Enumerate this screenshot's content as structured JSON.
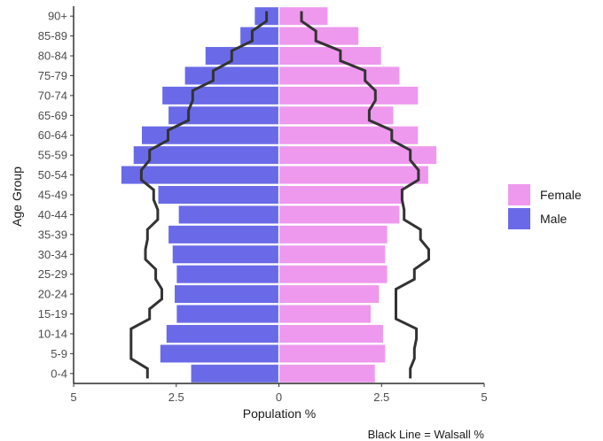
{
  "chart_data": {
    "type": "bar",
    "orientation": "horizontal",
    "xlabel": "Population %",
    "ylabel": "Age Group",
    "caption": "Black Line = Walsall %",
    "xlim": [
      -5,
      5
    ],
    "x_ticks": [
      -5,
      -2.5,
      0,
      2.5,
      5
    ],
    "x_tick_labels": [
      "5",
      "2.5",
      "0",
      "2.5",
      "5"
    ],
    "grid": false,
    "legend_position": "right",
    "categories": [
      "0-4",
      "5-9",
      "10-14",
      "15-19",
      "20-24",
      "25-29",
      "30-34",
      "35-39",
      "40-44",
      "45-49",
      "50-54",
      "55-59",
      "60-64",
      "65-69",
      "70-74",
      "75-79",
      "80-84",
      "85-89",
      "90+"
    ],
    "series": [
      {
        "name": "Female",
        "color": "#ee99ee",
        "values": [
          2.35,
          2.6,
          2.55,
          2.25,
          2.45,
          2.65,
          2.6,
          2.65,
          2.95,
          3.05,
          3.65,
          3.85,
          3.4,
          2.8,
          3.4,
          2.95,
          2.5,
          1.95,
          1.2
        ]
      },
      {
        "name": "Male",
        "color": "#6a6ae8",
        "values": [
          -2.15,
          -2.9,
          -2.75,
          -2.5,
          -2.55,
          -2.5,
          -2.6,
          -2.7,
          -2.45,
          -2.95,
          -3.85,
          -3.55,
          -3.35,
          -2.7,
          -2.85,
          -2.3,
          -1.8,
          -0.95,
          -0.6
        ]
      }
    ],
    "reference_line": {
      "color": "#333333",
      "female": [
        3.2,
        3.3,
        3.35,
        2.85,
        2.85,
        3.3,
        3.65,
        3.45,
        3.05,
        3.0,
        3.4,
        3.2,
        2.75,
        2.2,
        2.35,
        2.1,
        1.5,
        0.9,
        0.55
      ],
      "male": [
        -3.2,
        -3.6,
        -3.6,
        -3.15,
        -2.85,
        -3.0,
        -3.25,
        -3.2,
        -2.95,
        -3.05,
        -3.35,
        -3.15,
        -2.7,
        -2.2,
        -2.1,
        -1.6,
        -1.15,
        -0.65,
        -0.3
      ]
    }
  }
}
